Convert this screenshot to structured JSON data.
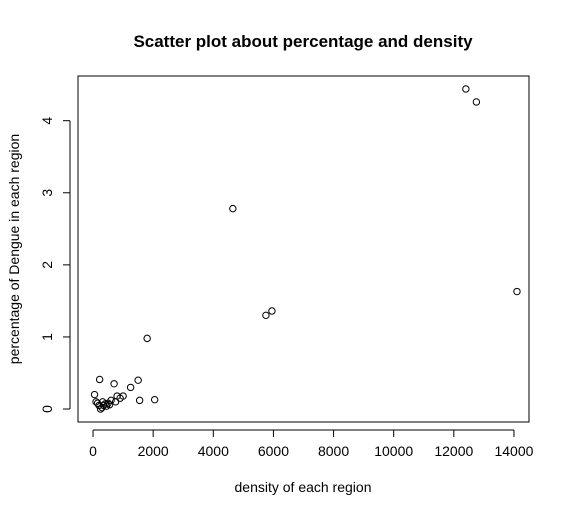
{
  "chart_data": {
    "type": "scatter",
    "title": "Scatter plot about percentage and density",
    "xlabel": "density of each region",
    "ylabel": "percentage of Dengue in each region",
    "xlim": [
      -500,
      14500
    ],
    "ylim": [
      -0.18,
      4.62
    ],
    "x_ticks": [
      0,
      2000,
      4000,
      6000,
      8000,
      10000,
      12000,
      14000
    ],
    "y_ticks": [
      0,
      1,
      2,
      3,
      4
    ],
    "grid": false,
    "legend": "none",
    "points": [
      {
        "x": 50,
        "y": 0.2
      },
      {
        "x": 100,
        "y": 0.1
      },
      {
        "x": 150,
        "y": 0.08
      },
      {
        "x": 200,
        "y": 0.05
      },
      {
        "x": 220,
        "y": 0.41
      },
      {
        "x": 250,
        "y": 0.0
      },
      {
        "x": 300,
        "y": 0.02
      },
      {
        "x": 320,
        "y": 0.1
      },
      {
        "x": 350,
        "y": 0.05
      },
      {
        "x": 400,
        "y": 0.07
      },
      {
        "x": 450,
        "y": 0.04
      },
      {
        "x": 500,
        "y": 0.08
      },
      {
        "x": 550,
        "y": 0.06
      },
      {
        "x": 600,
        "y": 0.12
      },
      {
        "x": 700,
        "y": 0.35
      },
      {
        "x": 750,
        "y": 0.1
      },
      {
        "x": 800,
        "y": 0.18
      },
      {
        "x": 900,
        "y": 0.15
      },
      {
        "x": 1000,
        "y": 0.18
      },
      {
        "x": 1250,
        "y": 0.3
      },
      {
        "x": 1500,
        "y": 0.4
      },
      {
        "x": 1550,
        "y": 0.12
      },
      {
        "x": 1800,
        "y": 0.98
      },
      {
        "x": 2050,
        "y": 0.13
      },
      {
        "x": 4650,
        "y": 2.78
      },
      {
        "x": 5750,
        "y": 1.3
      },
      {
        "x": 5950,
        "y": 1.36
      },
      {
        "x": 12400,
        "y": 4.44
      },
      {
        "x": 12750,
        "y": 4.26
      },
      {
        "x": 14100,
        "y": 1.63
      }
    ]
  }
}
